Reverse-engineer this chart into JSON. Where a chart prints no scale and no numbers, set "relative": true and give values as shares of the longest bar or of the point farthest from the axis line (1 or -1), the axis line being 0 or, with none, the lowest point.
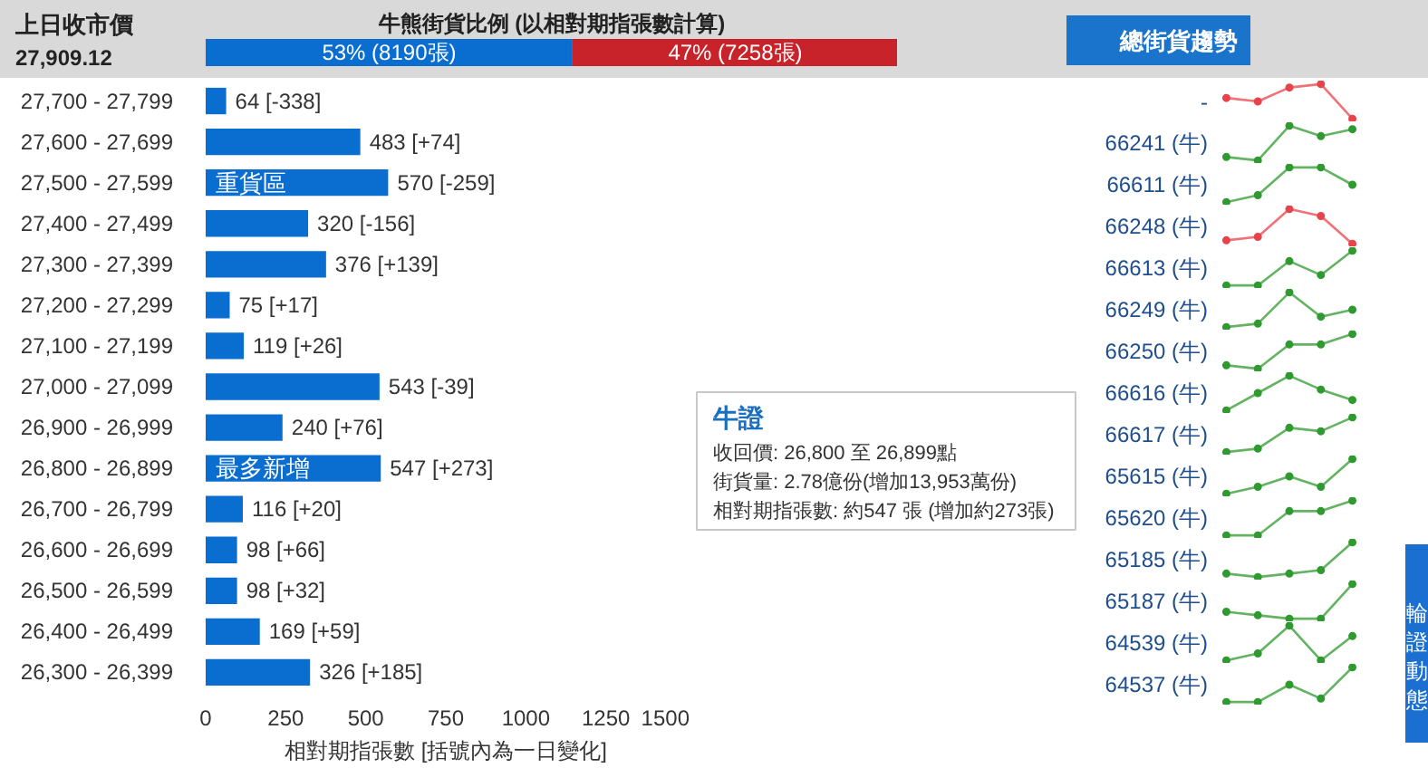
{
  "chart_data": [
    {
      "type": "other",
      "annotations": [
        "上日收市價",
        "27,909.12"
      ]
    },
    {
      "type": "bar",
      "orientation": "horizontal",
      "stacked": true,
      "title": "牛熊街貨比例 (以相對期指張數計算)",
      "categories": [
        null
      ],
      "series": [
        {
          "color": "#0a6ed1",
          "values": [
            53
          ],
          "value_labels": [
            "53% (8190張)"
          ]
        },
        {
          "color": "#c8232a",
          "values": [
            47
          ],
          "value_labels": [
            "47% (7258張)"
          ]
        }
      ],
      "xlim": [
        0,
        100
      ],
      "tick_labels": false
    },
    {
      "type": "other",
      "annotations": [
        "總街貨趨勢"
      ]
    },
    {
      "type": "bar",
      "orientation": "horizontal",
      "categories": [
        "27,700 - 27,799",
        "27,600 - 27,699",
        "27,500 - 27,599",
        "27,400 - 27,499",
        "27,300 - 27,399",
        "27,200 - 27,299",
        "27,100 - 27,199",
        "27,000 - 27,099",
        "26,900 - 26,999",
        "26,800 - 26,899",
        "26,700 - 26,799",
        "26,600 - 26,699",
        "26,500 - 26,599",
        "26,400 - 26,499",
        "26,300 - 26,399"
      ],
      "values": [
        64,
        483,
        570,
        320,
        376,
        75,
        119,
        543,
        240,
        547,
        116,
        98,
        98,
        169,
        326
      ],
      "color": "#0a6ed1",
      "value_labels": [
        "64 [-338]",
        "483 [+74]",
        "570 [-259]",
        "320 [-156]",
        "376 [+139]",
        "75 [+17]",
        "119 [+26]",
        "543 [-39]",
        "240 [+76]",
        "547 [+273]",
        "116 [+20]",
        "98 [+66]",
        "98 [+32]",
        "169 [+59]",
        "326 [+185]"
      ],
      "xlim": [
        0,
        1500
      ],
      "xticks": [
        0,
        250,
        500,
        750,
        1000,
        1250,
        1500
      ],
      "xlabel": "相對期指張數 [括號內為一日變化]",
      "annotations": [
        {
          "text": "重貨區",
          "x": 30,
          "y": "27,500 - 27,599"
        },
        {
          "text": "最多新增",
          "x": 30,
          "y": "26,800 - 26,899"
        }
      ]
    },
    {
      "type": "other",
      "title": "牛證",
      "annotations": [
        "收回價: 26,800 至 26,899點",
        "街貨量: 2.78億份(增加13,953萬份)",
        "相對期指張數: 約547 張 (增加約273張)"
      ]
    },
    {
      "type": "other",
      "annotations": [
        "-",
        "66241 (牛)",
        "66611 (牛)",
        "66248 (牛)",
        "66613 (牛)",
        "66249 (牛)",
        "66250 (牛)",
        "66616 (牛)",
        "66617 (牛)",
        "65615 (牛)",
        "65620 (牛)",
        "65185 (牛)",
        "65187 (牛)",
        "64539 (牛)",
        "64537 (牛)"
      ]
    },
    {
      "type": "line",
      "relative": true,
      "categories": [
        null,
        null,
        null,
        null,
        null
      ],
      "values": [
        0.6,
        0.5,
        0.9,
        1,
        0
      ],
      "color": "#e8434b",
      "marker": "circle",
      "tick_labels": false
    },
    {
      "type": "line",
      "relative": true,
      "categories": [
        null,
        null,
        null,
        null,
        null
      ],
      "values": [
        0.1,
        0,
        1,
        0.7,
        0.9
      ],
      "color": "#2f9a2f",
      "marker": "circle",
      "tick_labels": false
    },
    {
      "type": "line",
      "relative": true,
      "categories": [
        null,
        null,
        null,
        null,
        null
      ],
      "values": [
        0,
        0.2,
        1,
        1,
        0.5
      ],
      "color": "#2f9a2f",
      "marker": "circle",
      "tick_labels": false
    },
    {
      "type": "line",
      "relative": true,
      "categories": [
        null,
        null,
        null,
        null,
        null
      ],
      "values": [
        0.1,
        0.2,
        1,
        0.8,
        0
      ],
      "color": "#e8434b",
      "marker": "circle",
      "tick_labels": false
    },
    {
      "type": "line",
      "relative": true,
      "categories": [
        null,
        null,
        null,
        null,
        null
      ],
      "values": [
        0,
        0,
        0.7,
        0.3,
        1
      ],
      "color": "#2f9a2f",
      "marker": "circle",
      "tick_labels": false
    },
    {
      "type": "line",
      "relative": true,
      "categories": [
        null,
        null,
        null,
        null,
        null
      ],
      "values": [
        0,
        0.1,
        1,
        0.3,
        0.5
      ],
      "color": "#2f9a2f",
      "marker": "circle",
      "tick_labels": false
    },
    {
      "type": "line",
      "relative": true,
      "categories": [
        null,
        null,
        null,
        null,
        null
      ],
      "values": [
        0.1,
        0,
        0.7,
        0.7,
        1
      ],
      "color": "#2f9a2f",
      "marker": "circle",
      "tick_labels": false
    },
    {
      "type": "line",
      "relative": true,
      "categories": [
        null,
        null,
        null,
        null,
        null
      ],
      "values": [
        0,
        0.5,
        1,
        0.6,
        0.3
      ],
      "color": "#2f9a2f",
      "marker": "circle",
      "tick_labels": false
    },
    {
      "type": "line",
      "relative": true,
      "categories": [
        null,
        null,
        null,
        null,
        null
      ],
      "values": [
        0,
        0.1,
        0.7,
        0.6,
        1
      ],
      "color": "#2f9a2f",
      "marker": "circle",
      "tick_labels": false
    },
    {
      "type": "line",
      "relative": true,
      "categories": [
        null,
        null,
        null,
        null,
        null
      ],
      "values": [
        0,
        0.2,
        0.5,
        0.2,
        1
      ],
      "color": "#2f9a2f",
      "marker": "circle",
      "tick_labels": false
    },
    {
      "type": "line",
      "relative": true,
      "categories": [
        null,
        null,
        null,
        null,
        null
      ],
      "values": [
        0,
        0,
        0.7,
        0.7,
        1
      ],
      "color": "#2f9a2f",
      "marker": "circle",
      "tick_labels": false
    },
    {
      "type": "line",
      "relative": true,
      "categories": [
        null,
        null,
        null,
        null,
        null
      ],
      "values": [
        0.1,
        0,
        0.1,
        0.2,
        1
      ],
      "color": "#2f9a2f",
      "marker": "circle",
      "tick_labels": false
    },
    {
      "type": "line",
      "relative": true,
      "categories": [
        null,
        null,
        null,
        null,
        null
      ],
      "values": [
        0.2,
        0.1,
        0,
        0,
        1
      ],
      "color": "#2f9a2f",
      "marker": "circle",
      "tick_labels": false
    },
    {
      "type": "line",
      "relative": true,
      "categories": [
        null,
        null,
        null,
        null,
        null
      ],
      "values": [
        0,
        0.2,
        1,
        0,
        0.7
      ],
      "color": "#2f9a2f",
      "marker": "circle",
      "tick_labels": false
    },
    {
      "type": "line",
      "relative": true,
      "categories": [
        null,
        null,
        null,
        null,
        null
      ],
      "values": [
        0,
        0,
        0.5,
        0.1,
        1
      ],
      "color": "#2f9a2f",
      "marker": "circle",
      "tick_labels": false
    },
    {
      "type": "other",
      "annotations": [
        "輪證動態"
      ]
    }
  ]
}
